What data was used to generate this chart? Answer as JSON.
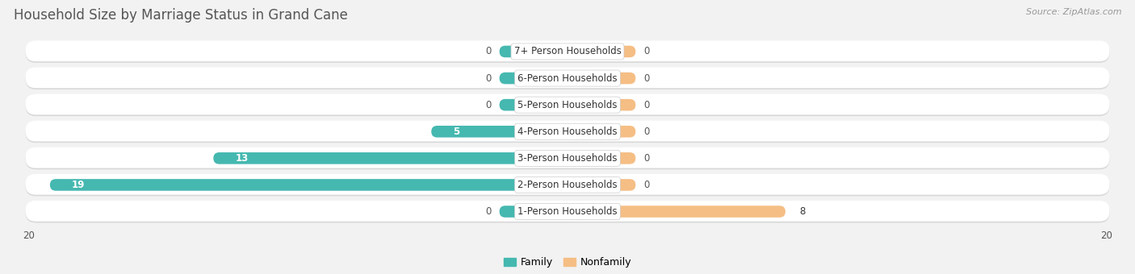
{
  "title": "Household Size by Marriage Status in Grand Cane",
  "source": "Source: ZipAtlas.com",
  "categories": [
    "7+ Person Households",
    "6-Person Households",
    "5-Person Households",
    "4-Person Households",
    "3-Person Households",
    "2-Person Households",
    "1-Person Households"
  ],
  "family_values": [
    0,
    0,
    0,
    5,
    13,
    19,
    0
  ],
  "nonfamily_values": [
    0,
    0,
    0,
    0,
    0,
    0,
    8
  ],
  "family_color": "#45B8B0",
  "nonfamily_color": "#F5BE84",
  "family_label": "Family",
  "nonfamily_label": "Nonfamily",
  "x_max": 20,
  "bg_color": "#f2f2f2",
  "row_bg_color": "#ffffff",
  "row_shadow_color": "#d8d8d8",
  "title_fontsize": 12,
  "source_fontsize": 8,
  "label_fontsize": 8.5,
  "value_fontsize": 8.5,
  "legend_fontsize": 9,
  "tick_label": "20"
}
